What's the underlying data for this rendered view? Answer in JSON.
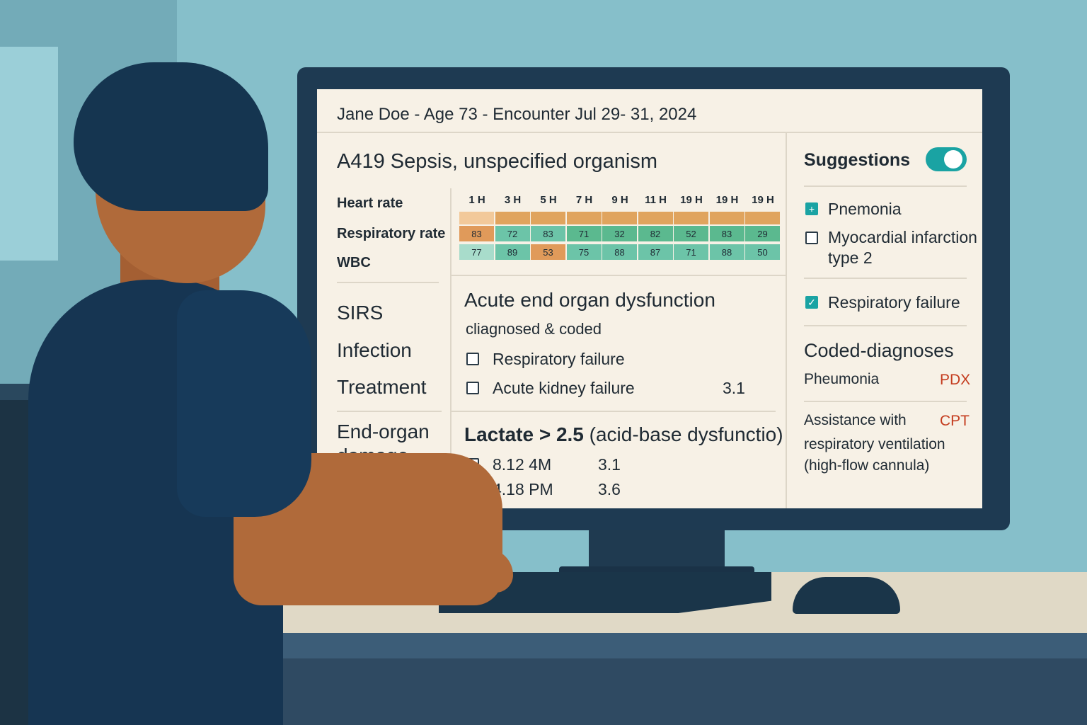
{
  "header": {
    "title": "Jane Doe -  Age 73 - Encounter Jul 29- 31, 2024"
  },
  "diagnosis": {
    "title": "A419 Sepsis, unspecified organism"
  },
  "vitals": {
    "labels": [
      "Heart rate",
      "Respiratory rate",
      "WBC"
    ],
    "hours": [
      "1 H",
      "3 H",
      "5 H",
      "7 H",
      "9 H",
      "11 H",
      "19 H",
      "19 H",
      "19 H"
    ],
    "rows": [
      [
        {
          "v": "",
          "c": "#f2c99a"
        },
        {
          "v": "",
          "c": "#e0a45e"
        },
        {
          "v": "",
          "c": "#e0a45e"
        },
        {
          "v": "",
          "c": "#e0a45e"
        },
        {
          "v": "",
          "c": "#e0a45e"
        },
        {
          "v": "",
          "c": "#e0a45e"
        },
        {
          "v": "",
          "c": "#e0a45e"
        },
        {
          "v": "",
          "c": "#e0a45e"
        },
        {
          "v": "",
          "c": "#e0a45e"
        }
      ],
      [
        {
          "v": "83",
          "c": "#e09a5a"
        },
        {
          "v": "72",
          "c": "#6cc4a8"
        },
        {
          "v": "83",
          "c": "#6cc4a8"
        },
        {
          "v": "71",
          "c": "#5bb98f"
        },
        {
          "v": "32",
          "c": "#5bb98f"
        },
        {
          "v": "82",
          "c": "#5bb98f"
        },
        {
          "v": "52",
          "c": "#5bb98f"
        },
        {
          "v": "83",
          "c": "#5bb98f"
        },
        {
          "v": "29",
          "c": "#5bb98f"
        }
      ],
      [
        {
          "v": "77",
          "c": "#a8dccb"
        },
        {
          "v": "89",
          "c": "#6cc4a8"
        },
        {
          "v": "53",
          "c": "#e09a5a"
        },
        {
          "v": "75",
          "c": "#6cc4a8"
        },
        {
          "v": "88",
          "c": "#6cc4a8"
        },
        {
          "v": "87",
          "c": "#6cc4a8"
        },
        {
          "v": "71",
          "c": "#6cc4a8"
        },
        {
          "v": "88",
          "c": "#6cc4a8"
        },
        {
          "v": "50",
          "c": "#6cc4a8"
        }
      ]
    ]
  },
  "sections": {
    "sirs": "SIRS",
    "infection": "Infection",
    "treatment": "Treatment",
    "end_organ_1": "End-organ",
    "end_organ_2": "damage"
  },
  "aeod": {
    "title": "Acute end organ dysfunction",
    "subtitle": "cliagnosed & coded",
    "items": [
      {
        "label": "Respiratory failure",
        "value": ""
      },
      {
        "label": "Acute kidney failure",
        "value": "3.1"
      }
    ]
  },
  "lactate": {
    "title_bold": "Lactate > 2.5",
    "title_rest": " (acid-base dysfunctio)",
    "items": [
      {
        "time": "8.12 4M",
        "value": "3.1"
      },
      {
        "time": "4.18 PM",
        "value": "3.6"
      }
    ]
  },
  "suggestions": {
    "title": "Suggestions",
    "toggle_on": true,
    "items": [
      {
        "label": "Pnemonia",
        "state": "plus"
      },
      {
        "label_1": "Myocardial infarction",
        "label_2": "type 2",
        "state": "unchecked"
      },
      {
        "label": "Respiratory failure",
        "state": "checked"
      }
    ]
  },
  "coded": {
    "title": "Coded-diagnoses",
    "items": [
      {
        "label": "Pheumonia",
        "code": "PDX"
      },
      {
        "label_1": "Assistance with",
        "label_2": "respiratory ventilation",
        "label_3": "(high-flow cannula)",
        "code": "CPT"
      }
    ]
  },
  "colors": {
    "accent": "#1aa3a3",
    "code": "#c43c1e",
    "screen_bg": "#f7f1e6"
  }
}
